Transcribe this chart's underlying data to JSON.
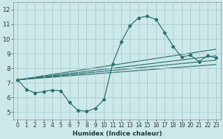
{
  "title": "",
  "xlabel": "Humidex (Indice chaleur)",
  "xlim": [
    -0.5,
    23.5
  ],
  "ylim": [
    4.5,
    12.5
  ],
  "xticks": [
    0,
    1,
    2,
    3,
    4,
    5,
    6,
    7,
    8,
    9,
    10,
    11,
    12,
    13,
    14,
    15,
    16,
    17,
    18,
    19,
    20,
    21,
    22,
    23
  ],
  "yticks": [
    5,
    6,
    7,
    8,
    9,
    10,
    11,
    12
  ],
  "bg_color": "#cce8e8",
  "line_color": "#2a7070",
  "grid_color": "#aacccc",
  "curve_x": [
    0,
    1,
    2,
    3,
    4,
    5,
    6,
    7,
    8,
    9,
    10,
    11,
    12,
    13,
    14,
    15,
    16,
    17,
    18,
    19,
    20,
    21,
    22,
    23
  ],
  "curve_y": [
    7.2,
    6.55,
    6.3,
    6.4,
    6.5,
    6.45,
    5.65,
    5.1,
    5.05,
    5.25,
    5.85,
    8.3,
    9.8,
    10.9,
    11.45,
    11.55,
    11.35,
    10.45,
    9.5,
    8.75,
    8.9,
    8.45,
    8.85,
    8.7
  ],
  "straight_lines": [
    {
      "x": [
        0,
        23
      ],
      "y": [
        7.2,
        9.3
      ]
    },
    {
      "x": [
        0,
        23
      ],
      "y": [
        7.2,
        8.85
      ]
    },
    {
      "x": [
        0,
        23
      ],
      "y": [
        7.2,
        8.55
      ]
    },
    {
      "x": [
        0,
        23
      ],
      "y": [
        7.2,
        8.25
      ]
    }
  ],
  "xlabel_fontsize": 6.5,
  "tick_fontsize_x": 5.5,
  "tick_fontsize_y": 6.5
}
